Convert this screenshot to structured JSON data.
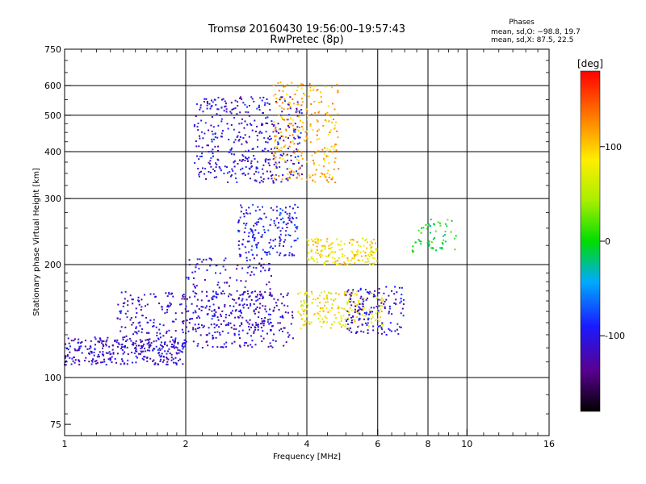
{
  "chart_data": {
    "type": "scatter",
    "title": "Tromsø 20160430 19:56:00–19:57:43",
    "subtitle": "RwPretec (8p)",
    "xlabel": "Frequency [MHz]",
    "ylabel": "Stationary phase Virtual Height [km]",
    "x_scale": "log",
    "y_scale": "log",
    "xlim": [
      1,
      16
    ],
    "ylim": [
      70,
      750
    ],
    "x_ticks": [
      1,
      2,
      4,
      6,
      8,
      10,
      16
    ],
    "y_ticks": [
      75,
      100,
      200,
      300,
      400,
      500,
      600,
      750
    ],
    "grid": true,
    "stats": {
      "header": "Phases",
      "line_o": "mean, sd,O: −98.8, 19.7",
      "line_x": "mean, sd,X: 87.5, 22.5"
    },
    "colorbar": {
      "label": "[deg]",
      "min": -180,
      "max": 180,
      "ticks": [
        100,
        0,
        -100
      ],
      "colormap": "rainbow"
    },
    "series": [
      {
        "x_range": [
          1.0,
          2.0
        ],
        "y_range": [
          108,
          128
        ],
        "phase_mean": -110,
        "count": 300
      },
      {
        "x_range": [
          1.35,
          3.7
        ],
        "y_range": [
          120,
          170
        ],
        "phase_mean": -112,
        "count": 420
      },
      {
        "x_range": [
          2.0,
          3.3
        ],
        "y_range": [
          130,
          210
        ],
        "phase_mean": -108,
        "count": 160
      },
      {
        "x_range": [
          2.1,
          3.9
        ],
        "y_range": [
          330,
          560
        ],
        "phase_mean": -105,
        "count": 420
      },
      {
        "x_range": [
          2.7,
          3.8
        ],
        "y_range": [
          210,
          290
        ],
        "phase_mean": -95,
        "count": 180
      },
      {
        "x_range": [
          3.3,
          4.8
        ],
        "y_range": [
          330,
          620
        ],
        "phase_mean": 110,
        "count": 260
      },
      {
        "x_range": [
          3.8,
          6.2
        ],
        "y_range": [
          135,
          170
        ],
        "phase_mean": 85,
        "count": 200
      },
      {
        "x_range": [
          4.0,
          6.0
        ],
        "y_range": [
          200,
          235
        ],
        "phase_mean": 90,
        "count": 170
      },
      {
        "x_range": [
          5.0,
          7.0
        ],
        "y_range": [
          130,
          175
        ],
        "phase_mean": -105,
        "count": 150
      },
      {
        "x_range": [
          7.3,
          9.4
        ],
        "y_range": [
          215,
          265
        ],
        "phase_mean": 0,
        "count": 60
      }
    ]
  }
}
